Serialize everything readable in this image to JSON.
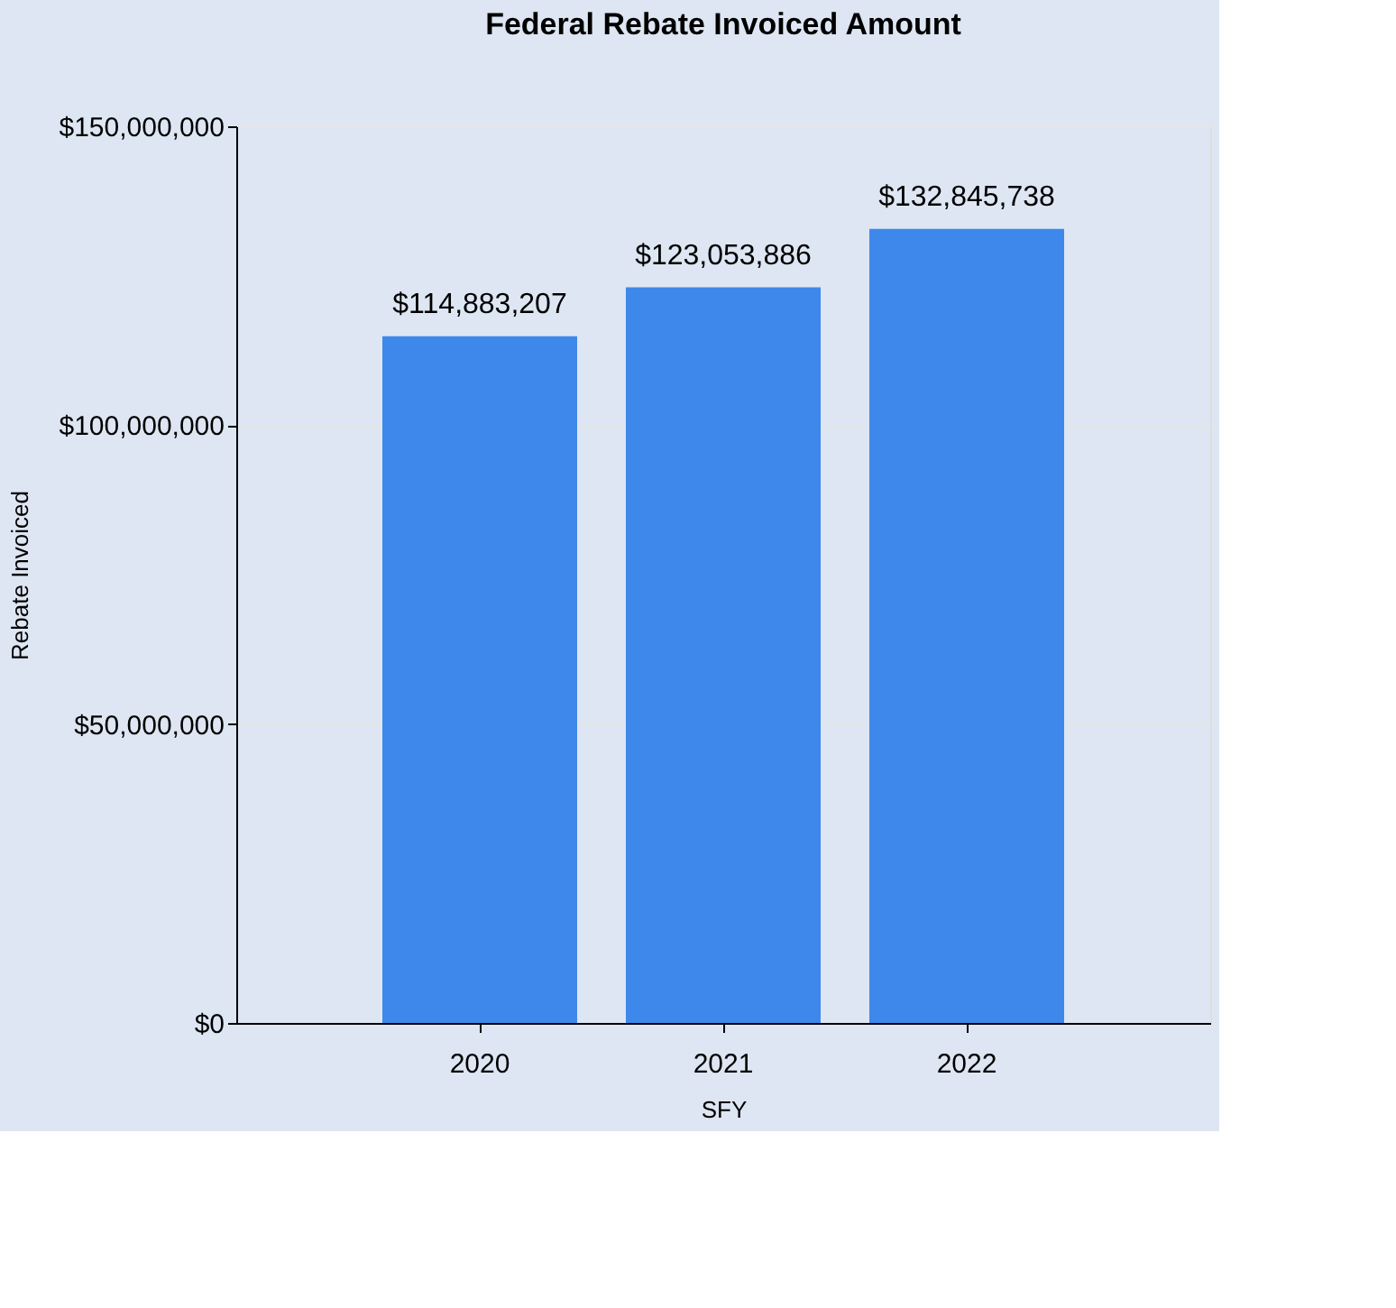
{
  "chart_data": {
    "type": "bar",
    "title": "Federal Rebate Invoiced Amount",
    "xlabel": "SFY",
    "ylabel": "Rebate Invoiced",
    "categories": [
      "2020",
      "2021",
      "2022"
    ],
    "values": [
      114883207,
      123053886,
      132845738
    ],
    "value_labels": [
      "$114,883,207",
      "$123,053,886",
      "$132,845,738"
    ],
    "color": "#3d88ea",
    "ylim": [
      0,
      150000000
    ],
    "yticks": [
      {
        "value": 0,
        "label": "$0"
      },
      {
        "value": 50000000,
        "label": "$50,000,000"
      },
      {
        "value": 100000000,
        "label": "$100,000,000"
      },
      {
        "value": 150000000,
        "label": "$150,000,000"
      }
    ],
    "grid": "y"
  }
}
